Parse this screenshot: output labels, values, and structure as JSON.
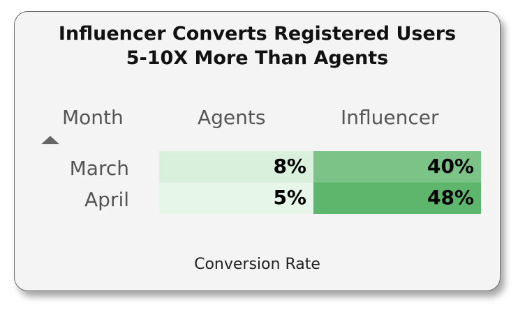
{
  "title_line1": "Influencer Converts Registered Users",
  "title_line2": "5-10X More Than Agents",
  "headers": {
    "month": "Month",
    "agents": "Agents",
    "influencer": "Influencer"
  },
  "sort_icon": "sort-ascending-triangle-icon",
  "footer": "Conversion Rate",
  "colors": {
    "agents_march": "#d9f1dc",
    "agents_april": "#e6f6e8",
    "influencer_march": "#7cc387",
    "influencer_april": "#5eb56c"
  },
  "chart_data": {
    "type": "table",
    "columns": [
      "Month",
      "Agents",
      "Influencer"
    ],
    "rows": [
      {
        "month": "March",
        "agents": "8%",
        "influencer": "40%"
      },
      {
        "month": "April",
        "agents": "5%",
        "influencer": "48%"
      }
    ],
    "values": {
      "agents": [
        8,
        5
      ],
      "influencer": [
        40,
        48
      ]
    }
  }
}
